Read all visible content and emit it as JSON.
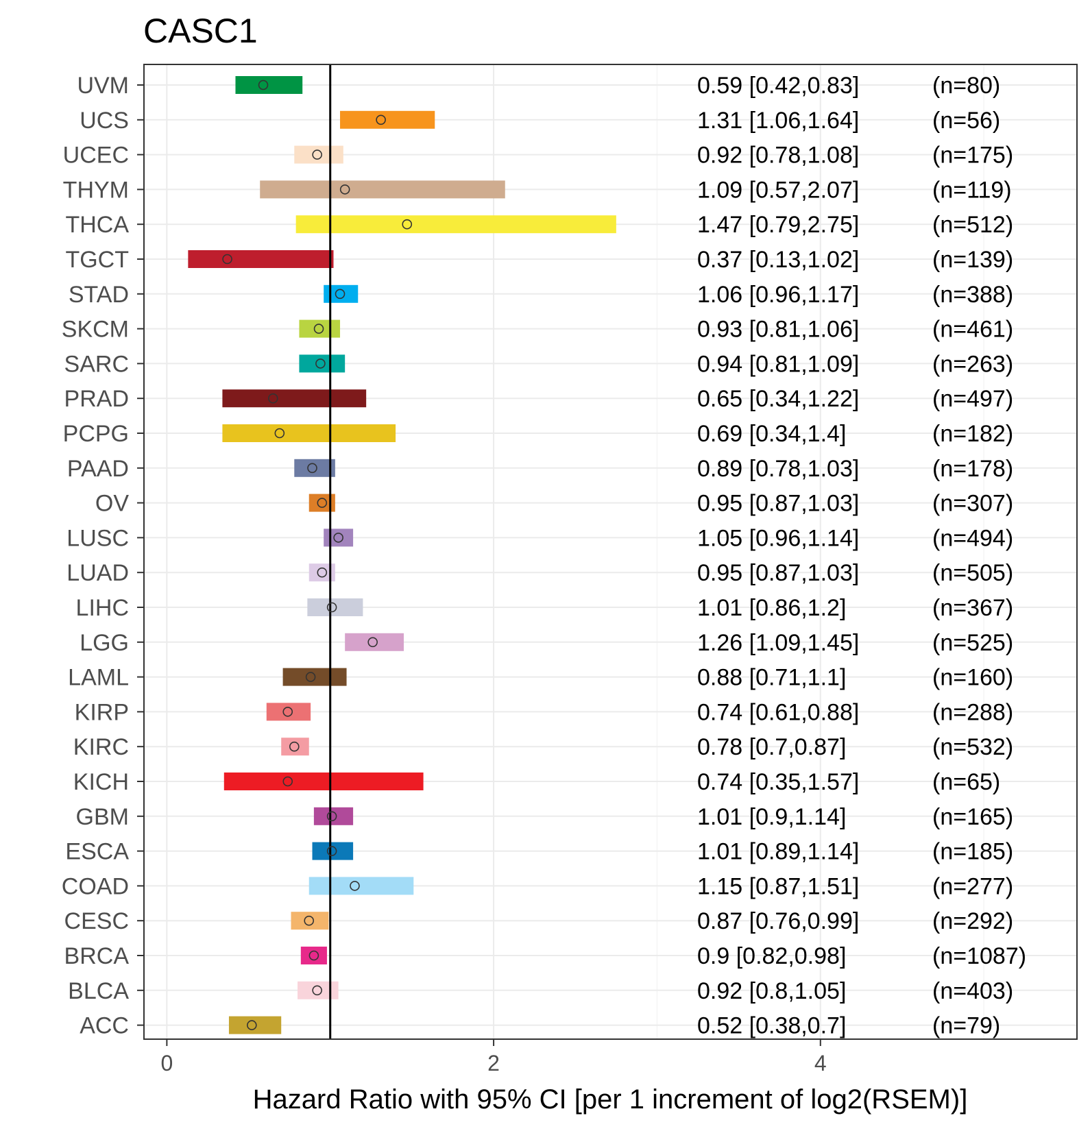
{
  "chart_data": {
    "type": "forest",
    "title": "CASC1",
    "xlabel": "Hazard Ratio with 95% CI [per 1 increment of log2(RSEM)]",
    "ylabel": "",
    "xlim": [
      -0.14,
      5.57
    ],
    "x_ticks": [
      0,
      2,
      4
    ],
    "reference_line": 1,
    "grid": true,
    "rows": [
      {
        "label": "UVM",
        "hr": 0.59,
        "lower": 0.42,
        "upper": 0.83,
        "hr_text": "0.59 [0.42,0.83]",
        "n_text": "(n=80)",
        "color": "#009444"
      },
      {
        "label": "UCS",
        "hr": 1.31,
        "lower": 1.06,
        "upper": 1.64,
        "hr_text": "1.31 [1.06,1.64]",
        "n_text": "(n=56)",
        "color": "#F7941D"
      },
      {
        "label": "UCEC",
        "hr": 0.92,
        "lower": 0.78,
        "upper": 1.08,
        "hr_text": "0.92 [0.78,1.08]",
        "n_text": "(n=175)",
        "color": "#FBE0C7"
      },
      {
        "label": "THYM",
        "hr": 1.09,
        "lower": 0.57,
        "upper": 2.07,
        "hr_text": "1.09 [0.57,2.07]",
        "n_text": "(n=119)",
        "color": "#CFAC8F"
      },
      {
        "label": "THCA",
        "hr": 1.47,
        "lower": 0.79,
        "upper": 2.75,
        "hr_text": "1.47 [0.79,2.75]",
        "n_text": "(n=512)",
        "color": "#F8EC3A"
      },
      {
        "label": "TGCT",
        "hr": 0.37,
        "lower": 0.13,
        "upper": 1.02,
        "hr_text": "0.37 [0.13,1.02]",
        "n_text": "(n=139)",
        "color": "#BE1E2D"
      },
      {
        "label": "STAD",
        "hr": 1.06,
        "lower": 0.96,
        "upper": 1.17,
        "hr_text": "1.06 [0.96,1.17]",
        "n_text": "(n=388)",
        "color": "#00AEEF"
      },
      {
        "label": "SKCM",
        "hr": 0.93,
        "lower": 0.81,
        "upper": 1.06,
        "hr_text": "0.93 [0.81,1.06]",
        "n_text": "(n=461)",
        "color": "#B9D441"
      },
      {
        "label": "SARC",
        "hr": 0.94,
        "lower": 0.81,
        "upper": 1.09,
        "hr_text": "0.94 [0.81,1.09]",
        "n_text": "(n=263)",
        "color": "#00A79D"
      },
      {
        "label": "PRAD",
        "hr": 0.65,
        "lower": 0.34,
        "upper": 1.22,
        "hr_text": "0.65 [0.34,1.22]",
        "n_text": "(n=497)",
        "color": "#7E1A1B"
      },
      {
        "label": "PCPG",
        "hr": 0.69,
        "lower": 0.34,
        "upper": 1.4,
        "hr_text": "0.69 [0.34,1.4]",
        "n_text": "(n=182)",
        "color": "#E8C31E"
      },
      {
        "label": "PAAD",
        "hr": 0.89,
        "lower": 0.78,
        "upper": 1.03,
        "hr_text": "0.89 [0.78,1.03]",
        "n_text": "(n=178)",
        "color": "#6C7BA3"
      },
      {
        "label": "OV",
        "hr": 0.95,
        "lower": 0.87,
        "upper": 1.03,
        "hr_text": "0.95 [0.87,1.03]",
        "n_text": "(n=307)",
        "color": "#DD7E27"
      },
      {
        "label": "LUSC",
        "hr": 1.05,
        "lower": 0.96,
        "upper": 1.14,
        "hr_text": "1.05 [0.96,1.14]",
        "n_text": "(n=494)",
        "color": "#A284BD"
      },
      {
        "label": "LUAD",
        "hr": 0.95,
        "lower": 0.87,
        "upper": 1.03,
        "hr_text": "0.95 [0.87,1.03]",
        "n_text": "(n=505)",
        "color": "#DDCBE6"
      },
      {
        "label": "LIHC",
        "hr": 1.01,
        "lower": 0.86,
        "upper": 1.2,
        "hr_text": "1.01 [0.86,1.2]",
        "n_text": "(n=367)",
        "color": "#CBCEDC"
      },
      {
        "label": "LGG",
        "hr": 1.26,
        "lower": 1.09,
        "upper": 1.45,
        "hr_text": "1.26 [1.09,1.45]",
        "n_text": "(n=525)",
        "color": "#D6A2CB"
      },
      {
        "label": "LAML",
        "hr": 0.88,
        "lower": 0.71,
        "upper": 1.1,
        "hr_text": "0.88 [0.71,1.1]",
        "n_text": "(n=160)",
        "color": "#744C29"
      },
      {
        "label": "KIRP",
        "hr": 0.74,
        "lower": 0.61,
        "upper": 0.88,
        "hr_text": "0.74 [0.61,0.88]",
        "n_text": "(n=288)",
        "color": "#EC7173"
      },
      {
        "label": "KIRC",
        "hr": 0.78,
        "lower": 0.7,
        "upper": 0.87,
        "hr_text": "0.78 [0.7,0.87]",
        "n_text": "(n=532)",
        "color": "#F49CA3"
      },
      {
        "label": "KICH",
        "hr": 0.74,
        "lower": 0.35,
        "upper": 1.57,
        "hr_text": "0.74 [0.35,1.57]",
        "n_text": "(n=65)",
        "color": "#ED1C24"
      },
      {
        "label": "GBM",
        "hr": 1.01,
        "lower": 0.9,
        "upper": 1.14,
        "hr_text": "1.01 [0.9,1.14]",
        "n_text": "(n=165)",
        "color": "#B04A9A"
      },
      {
        "label": "ESCA",
        "hr": 1.01,
        "lower": 0.89,
        "upper": 1.14,
        "hr_text": "1.01 [0.89,1.14]",
        "n_text": "(n=185)",
        "color": "#0B79B8"
      },
      {
        "label": "COAD",
        "hr": 1.15,
        "lower": 0.87,
        "upper": 1.51,
        "hr_text": "1.15 [0.87,1.51]",
        "n_text": "(n=277)",
        "color": "#A3DCF7"
      },
      {
        "label": "CESC",
        "hr": 0.87,
        "lower": 0.76,
        "upper": 0.99,
        "hr_text": "0.87 [0.76,0.99]",
        "n_text": "(n=292)",
        "color": "#F4B56B"
      },
      {
        "label": "BRCA",
        "hr": 0.9,
        "lower": 0.82,
        "upper": 0.98,
        "hr_text": "0.9 [0.82,0.98]",
        "n_text": "(n=1087)",
        "color": "#E7298A"
      },
      {
        "label": "BLCA",
        "hr": 0.92,
        "lower": 0.8,
        "upper": 1.05,
        "hr_text": "0.92 [0.8,1.05]",
        "n_text": "(n=403)",
        "color": "#F9D4DB"
      },
      {
        "label": "ACC",
        "hr": 0.52,
        "lower": 0.38,
        "upper": 0.7,
        "hr_text": "0.52 [0.38,0.7]",
        "n_text": "(n=79)",
        "color": "#C4A430"
      }
    ]
  }
}
